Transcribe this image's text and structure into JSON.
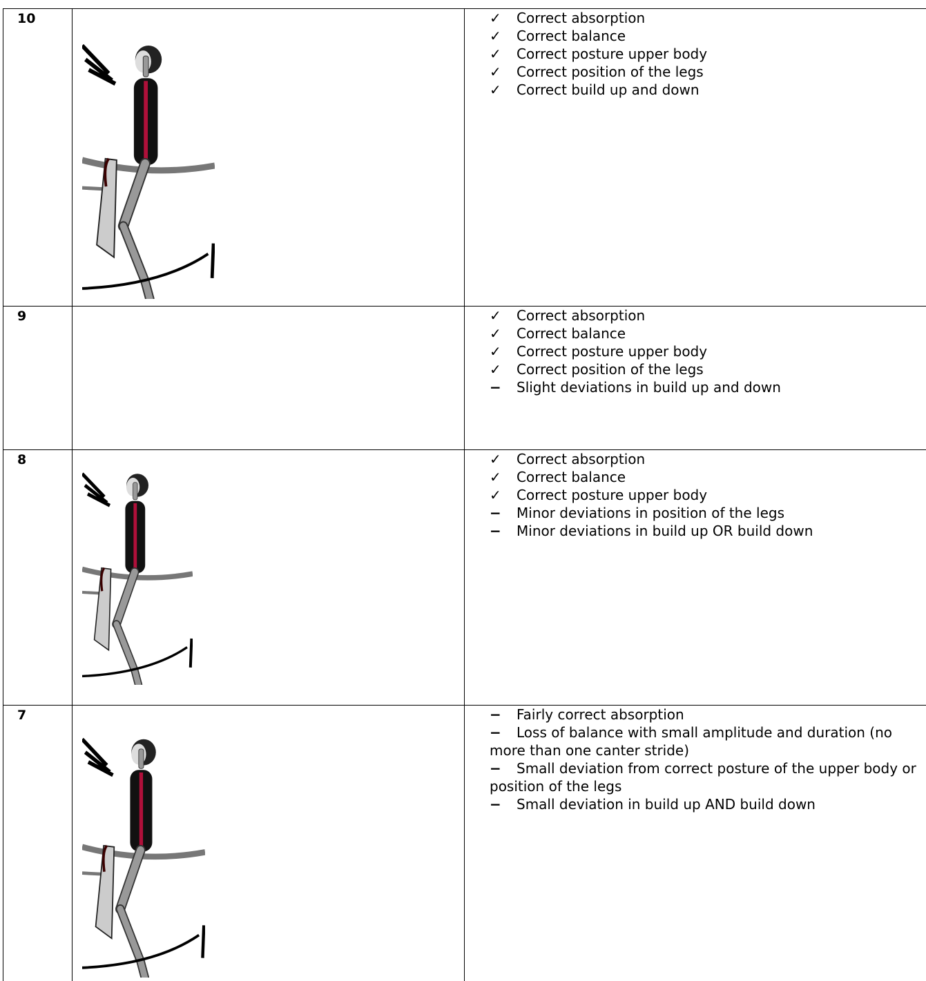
{
  "rows": [
    {
      "score": "10",
      "criteria": [
        {
          "marker": "✓",
          "text": "Correct absorption"
        },
        {
          "marker": "✓",
          "text": "Correct balance"
        },
        {
          "marker": "✓",
          "text": "Correct posture upper body"
        },
        {
          "marker": "✓",
          "text": "Correct position of the legs"
        },
        {
          "marker": "✓",
          "text": "Correct build up and down"
        }
      ]
    },
    {
      "score": "9",
      "criteria": [
        {
          "marker": "✓",
          "text": "Correct absorption"
        },
        {
          "marker": "✓",
          "text": "Correct balance"
        },
        {
          "marker": "✓",
          "text": "Correct posture upper body"
        },
        {
          "marker": "✓",
          "text": "Correct position of the legs"
        },
        {
          "marker": "−",
          "text": "Slight deviations in build up and down"
        }
      ]
    },
    {
      "score": "8",
      "criteria": [
        {
          "marker": "✓",
          "text": "Correct absorption"
        },
        {
          "marker": "✓",
          "text": "Correct balance"
        },
        {
          "marker": "✓",
          "text": "Correct posture upper body"
        },
        {
          "marker": "−",
          "text": "Minor deviations in position of the legs"
        },
        {
          "marker": "−",
          "text": "Minor deviations in build up OR build down"
        }
      ]
    },
    {
      "score": "7",
      "criteria": [
        {
          "marker": "−",
          "text": "Fairly correct absorption"
        },
        {
          "marker": "−",
          "text": "Loss of balance with small amplitude and duration (no more than one canter stride)"
        },
        {
          "marker": "−",
          "text": "Small deviation from correct posture of the upper body or position of the legs"
        },
        {
          "marker": "−",
          "text": "Small deviation in build up AND build down"
        }
      ]
    }
  ]
}
